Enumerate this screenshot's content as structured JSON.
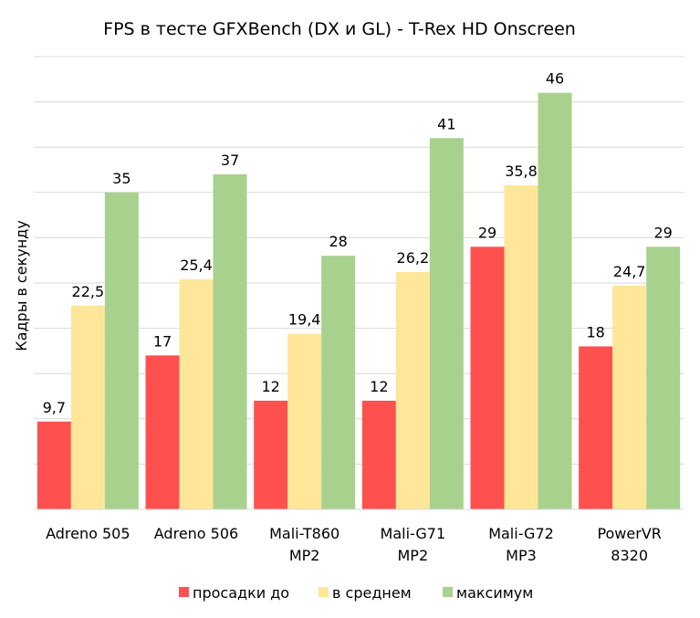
{
  "chart_data": {
    "type": "bar",
    "title": "FPS в тесте GFXBench (DX и GL) - T-Rex HD Onscreen",
    "xlabel": "",
    "ylabel": "Кадры в секунду",
    "ylim": [
      0,
      50
    ],
    "y_tick_step": 5,
    "grid": true,
    "legend_position": "bottom",
    "categories": [
      [
        "Adreno 505"
      ],
      [
        "Adreno 506"
      ],
      [
        "Mali-T860",
        "MP2"
      ],
      [
        "Mali-G71",
        "MP2"
      ],
      [
        "Mali-G72",
        "MP3"
      ],
      [
        "PowerVR",
        "8320"
      ]
    ],
    "series": [
      {
        "name": "просадки до",
        "color": "#ff5050",
        "values": [
          9.7,
          17,
          12,
          12,
          29,
          18
        ],
        "labels": [
          "9,7",
          "17",
          "12",
          "12",
          "29",
          "18"
        ]
      },
      {
        "name": "в среднем",
        "color": "#ffe699",
        "values": [
          22.5,
          25.4,
          19.4,
          26.2,
          35.8,
          24.7
        ],
        "labels": [
          "22,5",
          "25,4",
          "19,4",
          "26,2",
          "35,8",
          "24,7"
        ]
      },
      {
        "name": "максимум",
        "color": "#a9d18e",
        "values": [
          35,
          37,
          28,
          41,
          46,
          29
        ],
        "labels": [
          "35",
          "37",
          "28",
          "41",
          "46",
          "29"
        ]
      }
    ]
  }
}
